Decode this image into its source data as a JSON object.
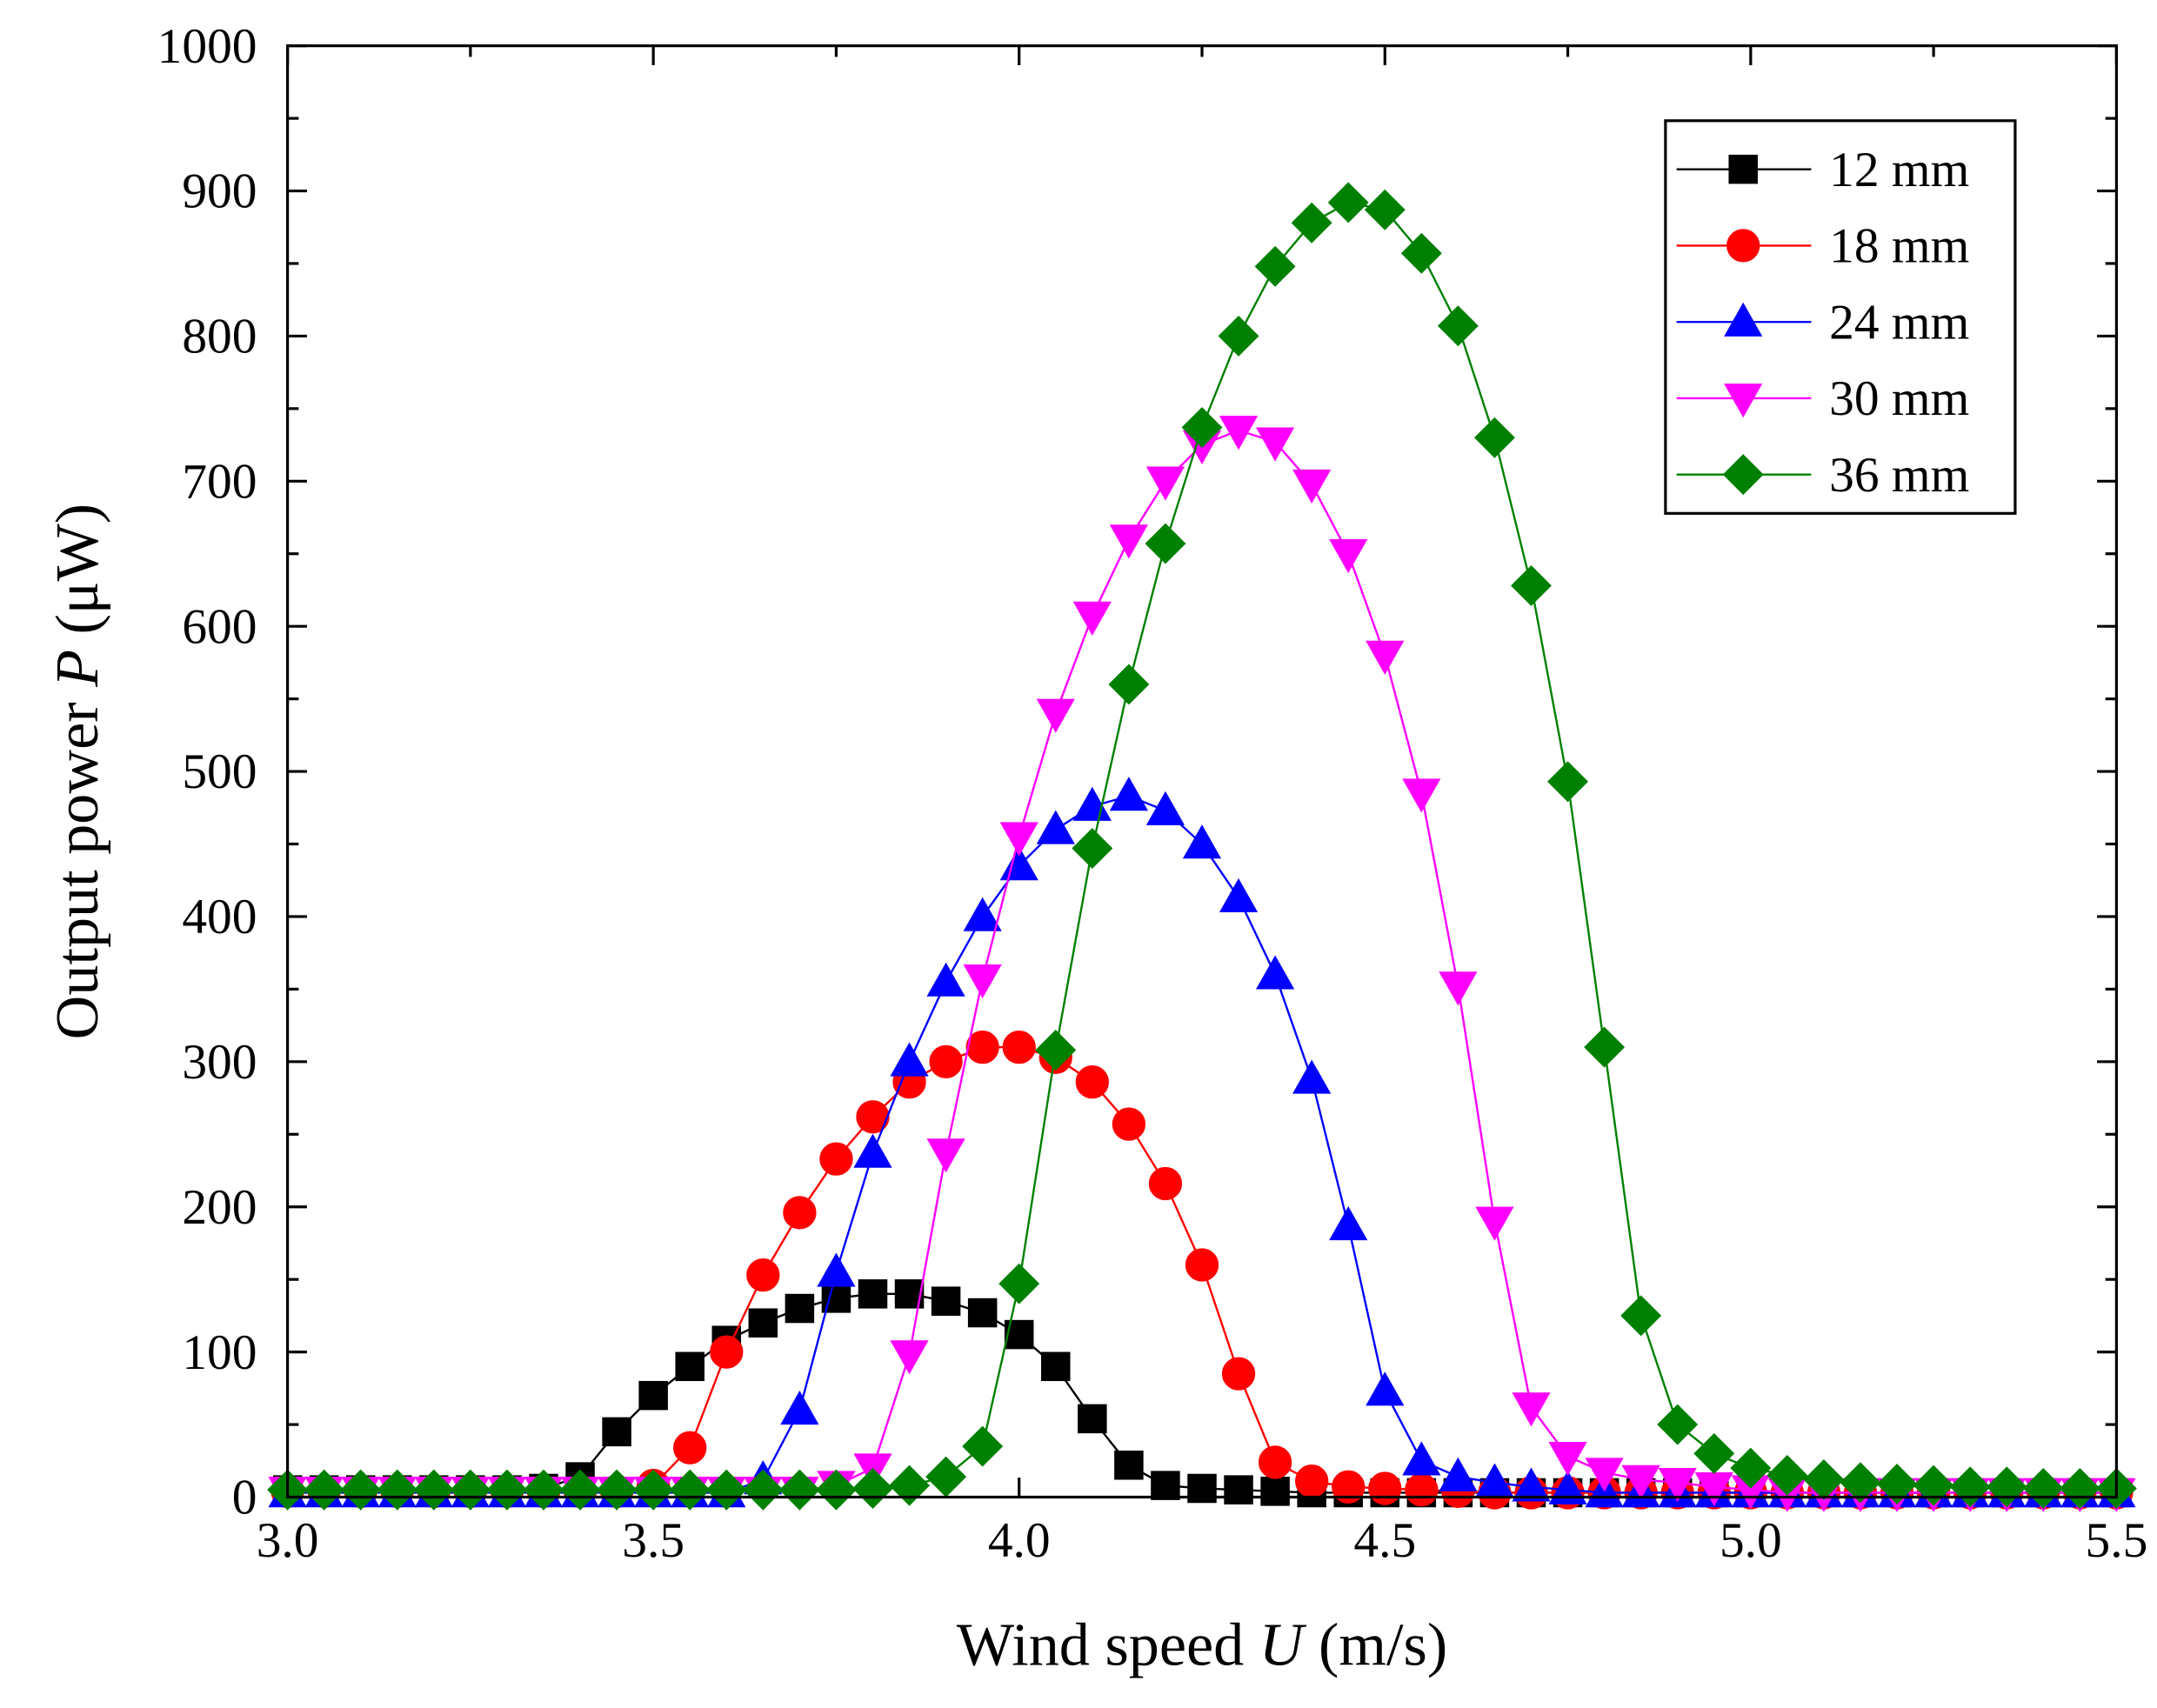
{
  "chart_data": {
    "type": "line",
    "xlabel_parts": [
      "Wind speed ",
      "U",
      " (m/s)"
    ],
    "ylabel_parts": [
      "Output power ",
      "P",
      " (μW)"
    ],
    "x": [
      3.0,
      3.05,
      3.1,
      3.15,
      3.2,
      3.25,
      3.3,
      3.35,
      3.4,
      3.45,
      3.5,
      3.55,
      3.6,
      3.65,
      3.7,
      3.75,
      3.8,
      3.85,
      3.9,
      3.95,
      4.0,
      4.05,
      4.1,
      4.15,
      4.2,
      4.25,
      4.3,
      4.35,
      4.4,
      4.45,
      4.5,
      4.55,
      4.6,
      4.65,
      4.7,
      4.75,
      4.8,
      4.85,
      4.9,
      4.95,
      5.0,
      5.05,
      5.1,
      5.15,
      5.2,
      5.25,
      5.3,
      5.35,
      5.4,
      5.45,
      5.5
    ],
    "series": [
      {
        "name": "12 mm",
        "color": "#000000",
        "marker": "square",
        "values": [
          5,
          5,
          5,
          5,
          5,
          5,
          5,
          6,
          14,
          45,
          70,
          90,
          108,
          120,
          130,
          137,
          140,
          140,
          135,
          127,
          112,
          90,
          54,
          22,
          8,
          6,
          5,
          4,
          3,
          3,
          3,
          3,
          3,
          3,
          3,
          3,
          3,
          3,
          3,
          3,
          3,
          3,
          3,
          3,
          3,
          3,
          3,
          3,
          3,
          3,
          3
        ]
      },
      {
        "name": "18 mm",
        "color": "#ff0000",
        "marker": "circle",
        "values": [
          4,
          4,
          4,
          4,
          4,
          4,
          4,
          4,
          4,
          4,
          8,
          34,
          100,
          153,
          196,
          233,
          262,
          286,
          300,
          310,
          310,
          303,
          286,
          257,
          216,
          160,
          85,
          24,
          11,
          7,
          6,
          5,
          4,
          3,
          3,
          3,
          3,
          3,
          3,
          3,
          3,
          3,
          3,
          3,
          3,
          3,
          3,
          3,
          3,
          3,
          3
        ]
      },
      {
        "name": "24 mm",
        "color": "#0000ff",
        "marker": "triangle-up",
        "values": [
          3,
          3,
          3,
          3,
          3,
          3,
          3,
          3,
          3,
          3,
          3,
          3,
          3,
          12,
          60,
          155,
          237,
          300,
          355,
          400,
          435,
          460,
          476,
          483,
          473,
          450,
          413,
          360,
          288,
          187,
          73,
          25,
          14,
          10,
          7,
          5,
          3,
          3,
          3,
          3,
          3,
          3,
          3,
          3,
          3,
          3,
          3,
          3,
          3,
          3,
          3
        ]
      },
      {
        "name": "30 mm",
        "color": "#ff00ff",
        "marker": "triangle-down",
        "values": [
          4,
          4,
          4,
          4,
          4,
          4,
          4,
          4,
          4,
          4,
          4,
          4,
          4,
          4,
          4,
          8,
          20,
          98,
          237,
          357,
          455,
          540,
          607,
          660,
          700,
          725,
          735,
          727,
          698,
          650,
          580,
          485,
          352,
          190,
          62,
          28,
          17,
          12,
          10,
          7,
          5,
          3,
          3,
          3,
          3,
          3,
          3,
          3,
          3,
          3,
          3
        ]
      },
      {
        "name": "36 mm",
        "color": "#008000",
        "marker": "diamond",
        "values": [
          5,
          5,
          5,
          5,
          5,
          5,
          5,
          5,
          5,
          5,
          5,
          5,
          5,
          5,
          5,
          5,
          6,
          8,
          14,
          35,
          147,
          308,
          447,
          560,
          657,
          737,
          800,
          848,
          878,
          892,
          887,
          857,
          807,
          730,
          628,
          493,
          310,
          125,
          50,
          30,
          20,
          15,
          12,
          10,
          9,
          8,
          7,
          7,
          6,
          6,
          6
        ]
      }
    ],
    "xlim": [
      3.0,
      5.5
    ],
    "xticks": [
      {
        "value": 3.0,
        "label": "3.0"
      },
      3.5,
      {
        "value": 4.0,
        "label": "4.0"
      },
      4.5,
      {
        "value": 5.0,
        "label": "5.0"
      },
      5.5
    ],
    "ylim": [
      0,
      1000
    ],
    "yticks": [
      0,
      100,
      200,
      300,
      400,
      500,
      600,
      700,
      800,
      900,
      1000
    ],
    "grid": false,
    "legend": "upper right"
  }
}
